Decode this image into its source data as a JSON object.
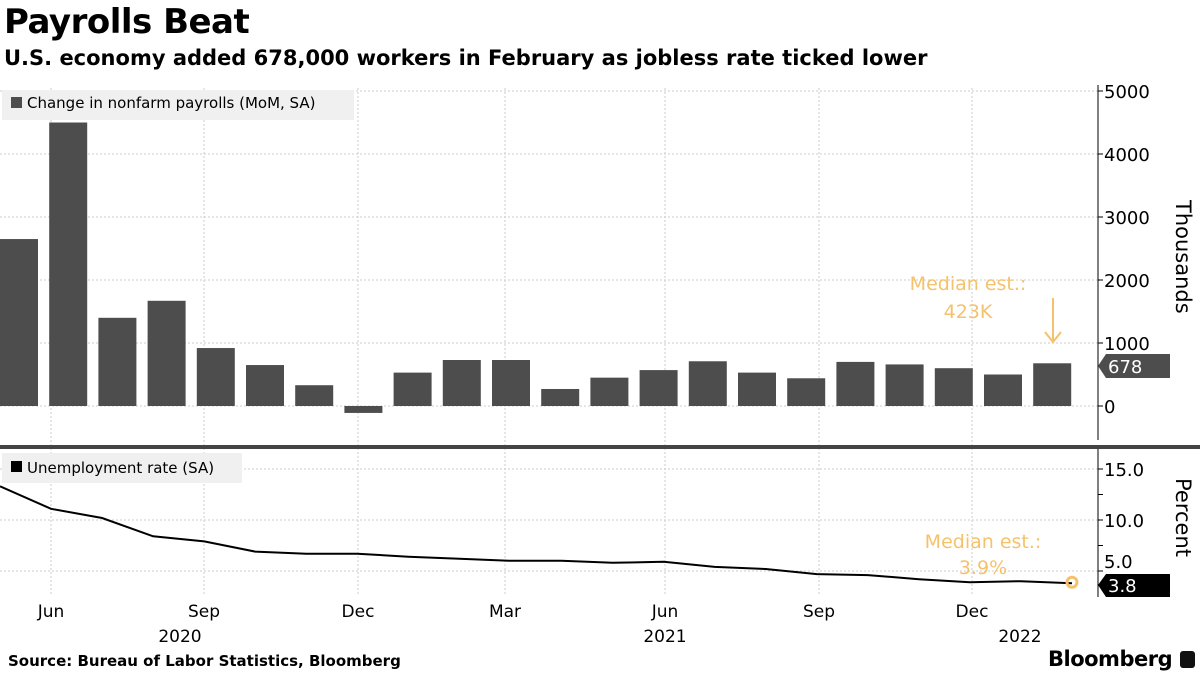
{
  "title": "Payrolls Beat",
  "subtitle": "U.S. economy added 678,000 workers in February as jobless rate ticked lower",
  "source": "Source: Bureau of Labor Statistics, Bloomberg",
  "brand": "Bloomberg",
  "colors": {
    "bar": "#4d4d4d",
    "line": "#000000",
    "estimate": "#f5c26b",
    "grid": "#cccccc"
  },
  "chart_data": [
    {
      "type": "bar",
      "legend": "Change in nonfarm payrolls (MoM, SA)",
      "ylabel": "Thousands",
      "ylim": [
        -600,
        5100
      ],
      "yticks": [
        0,
        1000,
        2000,
        3000,
        4000,
        5000
      ],
      "categories": [
        "May 2020",
        "Jun 2020",
        "Jul 2020",
        "Aug 2020",
        "Sep 2020",
        "Oct 2020",
        "Nov 2020",
        "Dec 2020",
        "Jan 2021",
        "Feb 2021",
        "Mar 2021",
        "Apr 2021",
        "May 2021",
        "Jun 2021",
        "Jul 2021",
        "Aug 2021",
        "Sep 2021",
        "Oct 2021",
        "Nov 2021",
        "Dec 2021",
        "Jan 2022",
        "Feb 2022"
      ],
      "values": [
        2650,
        4500,
        1400,
        1670,
        920,
        650,
        330,
        -110,
        530,
        730,
        730,
        270,
        450,
        570,
        710,
        530,
        440,
        700,
        660,
        600,
        500,
        678
      ],
      "last_value_label": "678",
      "annotation": {
        "line1": "Median est.:",
        "line2": "423K",
        "value": 423
      }
    },
    {
      "type": "line",
      "legend": "Unemployment rate (SA)",
      "ylabel": "Percent",
      "ylim": [
        2.0,
        17.0
      ],
      "yticks": [
        "5.0",
        "10.0",
        "15.0"
      ],
      "values": [
        13.3,
        11.1,
        10.2,
        8.4,
        7.9,
        6.9,
        6.7,
        6.7,
        6.4,
        6.2,
        6.0,
        6.0,
        5.8,
        5.9,
        5.4,
        5.2,
        4.7,
        4.6,
        4.2,
        3.9,
        4.0,
        3.8
      ],
      "last_value_label": "3.8",
      "annotation": {
        "line1": "Median est.:",
        "line2": "3.9%",
        "value": 3.9
      }
    },
    {
      "xticks": [
        "Jun",
        "Sep",
        "Dec",
        "Mar",
        "Jun",
        "Sep",
        "Dec"
      ],
      "years": [
        "2020",
        "2021",
        "2022"
      ]
    }
  ]
}
